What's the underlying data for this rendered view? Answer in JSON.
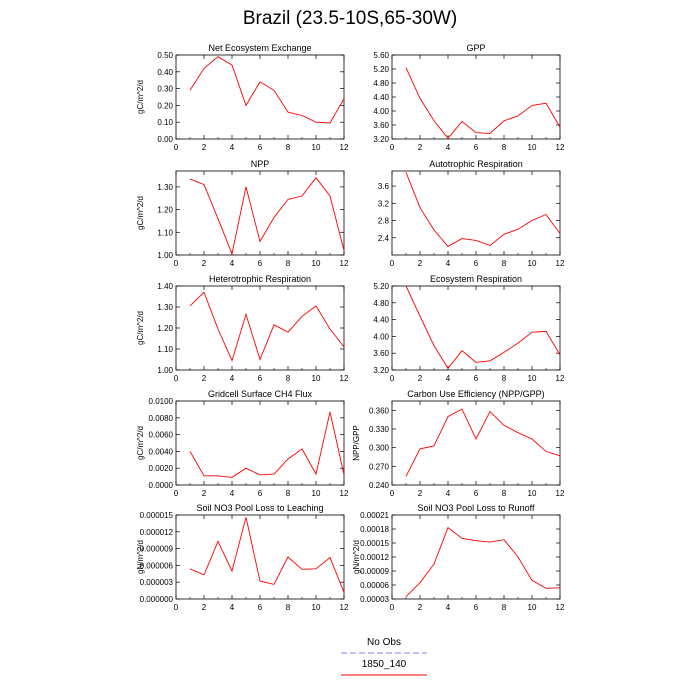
{
  "figure": {
    "title": "Brazil (23.5-10S,65-30W)"
  },
  "legend": {
    "items": [
      {
        "label": "No Obs",
        "color": "#8080ff",
        "dash": true
      },
      {
        "label": "1850_140",
        "color": "#ff0000",
        "dash": false
      }
    ]
  },
  "chart_data": [
    {
      "type": "line",
      "title": "Net Ecosystem Exchange",
      "ylabel": "gC/m^2/d",
      "xlim": [
        0,
        12
      ],
      "xticks": [
        0,
        2,
        4,
        6,
        8,
        10,
        12
      ],
      "ylim": [
        0.0,
        0.5
      ],
      "yticks": [
        "0.00",
        "0.10",
        "0.20",
        "0.30",
        "0.40",
        "0.50"
      ],
      "series": [
        {
          "x": [
            1,
            2,
            3,
            4,
            5,
            6,
            7,
            8,
            9,
            10,
            11,
            12
          ],
          "values": [
            0.29,
            0.42,
            0.49,
            0.44,
            0.2,
            0.34,
            0.29,
            0.16,
            0.14,
            0.1,
            0.095,
            0.24
          ]
        }
      ]
    },
    {
      "type": "line",
      "title": "GPP",
      "ylabel": "",
      "xlim": [
        0,
        12
      ],
      "xticks": [
        0,
        2,
        4,
        6,
        8,
        10,
        12
      ],
      "ylim": [
        3.2,
        5.6
      ],
      "yticks": [
        "3.20",
        "3.60",
        "4.00",
        "4.40",
        "4.80",
        "5.20",
        "5.60"
      ],
      "series": [
        {
          "x": [
            1,
            2,
            3,
            4,
            5,
            6,
            7,
            8,
            9,
            10,
            11,
            12
          ],
          "values": [
            5.24,
            4.36,
            3.72,
            3.22,
            3.7,
            3.38,
            3.36,
            3.72,
            3.86,
            4.16,
            4.22,
            3.54
          ]
        }
      ]
    },
    {
      "type": "line",
      "title": "NPP",
      "ylabel": "gC/m^2/d",
      "xlim": [
        0,
        12
      ],
      "xticks": [
        0,
        2,
        4,
        6,
        8,
        10,
        12
      ],
      "ylim": [
        1.0,
        1.37
      ],
      "yticks": [
        "1.00",
        "1.10",
        "1.20",
        "1.30"
      ],
      "series": [
        {
          "x": [
            1,
            2,
            3,
            4,
            5,
            6,
            7,
            8,
            9,
            10,
            11,
            12
          ],
          "values": [
            1.335,
            1.31,
            1.16,
            1.005,
            1.3,
            1.06,
            1.165,
            1.245,
            1.26,
            1.34,
            1.26,
            1.02
          ]
        }
      ]
    },
    {
      "type": "line",
      "title": "Autotrophic Respiration",
      "ylabel": "",
      "xlim": [
        0,
        12
      ],
      "xticks": [
        0,
        2,
        4,
        6,
        8,
        10,
        12
      ],
      "ylim": [
        2.0,
        3.95
      ],
      "yticks": [
        "2.4",
        "2.8",
        "3.2",
        "3.6"
      ],
      "series": [
        {
          "x": [
            1,
            2,
            3,
            4,
            5,
            6,
            7,
            8,
            9,
            10,
            11,
            12
          ],
          "values": [
            3.92,
            3.1,
            2.58,
            2.2,
            2.38,
            2.34,
            2.22,
            2.48,
            2.6,
            2.8,
            2.94,
            2.5
          ]
        }
      ]
    },
    {
      "type": "line",
      "title": "Heterotrophic Respiration",
      "ylabel": "gC/m^2/d",
      "xlim": [
        0,
        12
      ],
      "xticks": [
        0,
        2,
        4,
        6,
        8,
        10,
        12
      ],
      "ylim": [
        1.0,
        1.4
      ],
      "yticks": [
        "1.00",
        "1.10",
        "1.20",
        "1.30",
        "1.40"
      ],
      "series": [
        {
          "x": [
            1,
            2,
            3,
            4,
            5,
            6,
            7,
            8,
            9,
            10,
            11,
            12
          ],
          "values": [
            1.305,
            1.37,
            1.195,
            1.045,
            1.265,
            1.05,
            1.215,
            1.18,
            1.255,
            1.305,
            1.195,
            1.11
          ]
        }
      ]
    },
    {
      "type": "line",
      "title": "Ecosystem Respiration",
      "ylabel": "",
      "xlim": [
        0,
        12
      ],
      "xticks": [
        0,
        2,
        4,
        6,
        8,
        10,
        12
      ],
      "ylim": [
        3.2,
        5.2
      ],
      "yticks": [
        "3.20",
        "3.60",
        "4.00",
        "4.40",
        "4.80",
        "5.20"
      ],
      "series": [
        {
          "x": [
            1,
            2,
            3,
            4,
            5,
            6,
            7,
            8,
            9,
            10,
            11,
            12
          ],
          "values": [
            5.2,
            4.48,
            3.78,
            3.24,
            3.66,
            3.38,
            3.42,
            3.62,
            3.84,
            4.1,
            4.12,
            3.56
          ]
        }
      ]
    },
    {
      "type": "line",
      "title": "Gridcell Surface CH4 Flux",
      "ylabel": "gC/m^2/d",
      "xlim": [
        0,
        12
      ],
      "xticks": [
        0,
        2,
        4,
        6,
        8,
        10,
        12
      ],
      "ylim": [
        0.0,
        0.01
      ],
      "yticks": [
        "0.0000",
        "0.0020",
        "0.0040",
        "0.0060",
        "0.0080",
        "0.0100"
      ],
      "series": [
        {
          "x": [
            1,
            2,
            3,
            4,
            5,
            6,
            7,
            8,
            9,
            10,
            11,
            12
          ],
          "values": [
            0.004,
            0.0011,
            0.0011,
            0.0009,
            0.002,
            0.0012,
            0.0013,
            0.0031,
            0.0043,
            0.0013,
            0.0087,
            0.0012
          ]
        }
      ]
    },
    {
      "type": "line",
      "title": "Carbon Use Efficiency (NPP/GPP)",
      "ylabel": "NPP/GPP",
      "xlim": [
        0,
        12
      ],
      "xticks": [
        0,
        2,
        4,
        6,
        8,
        10,
        12
      ],
      "ylim": [
        0.24,
        0.375
      ],
      "yticks": [
        "0.240",
        "0.270",
        "0.300",
        "0.330",
        "0.360"
      ],
      "series": [
        {
          "x": [
            1,
            2,
            3,
            4,
            5,
            6,
            7,
            8,
            9,
            10,
            11,
            12
          ],
          "values": [
            0.254,
            0.298,
            0.303,
            0.35,
            0.362,
            0.314,
            0.358,
            0.336,
            0.324,
            0.314,
            0.294,
            0.287
          ]
        }
      ]
    },
    {
      "type": "line",
      "title": "Soil NO3 Pool Loss to Leaching",
      "ylabel": "gN/m^2/d",
      "xlim": [
        0,
        12
      ],
      "xticks": [
        0,
        2,
        4,
        6,
        8,
        10,
        12
      ],
      "ylim": [
        0.0,
        1.5e-05
      ],
      "yticks": [
        "0.000000",
        "0.000003",
        "0.000006",
        "0.000009",
        "0.000012",
        "0.000015"
      ],
      "series": [
        {
          "x": [
            1,
            2,
            3,
            4,
            5,
            6,
            7,
            8,
            9,
            10,
            11,
            12
          ],
          "values": [
            5.4e-06,
            4.3e-06,
            1.03e-05,
            5e-06,
            1.46e-05,
            3.2e-06,
            2.6e-06,
            7.5e-06,
            5.3e-06,
            5.4e-06,
            7.4e-06,
            1.2e-06
          ]
        }
      ]
    },
    {
      "type": "line",
      "title": "Soil NO3 Pool Loss to Runoff",
      "ylabel": "gN/m^2/d",
      "xlim": [
        0,
        12
      ],
      "xticks": [
        0,
        2,
        4,
        6,
        8,
        10,
        12
      ],
      "ylim": [
        3e-05,
        0.00021
      ],
      "yticks": [
        "0.00003",
        "0.00006",
        "0.00009",
        "0.00012",
        "0.00015",
        "0.00018",
        "0.00021"
      ],
      "series": [
        {
          "x": [
            1,
            2,
            3,
            4,
            5,
            6,
            7,
            8,
            9,
            10,
            11,
            12
          ],
          "values": [
            3.5e-05,
            6.5e-05,
            0.000105,
            0.000183,
            0.00016,
            0.000155,
            0.000152,
            0.000157,
            0.00012,
            7e-05,
            5.3e-05,
            5.4e-05
          ]
        }
      ]
    }
  ]
}
